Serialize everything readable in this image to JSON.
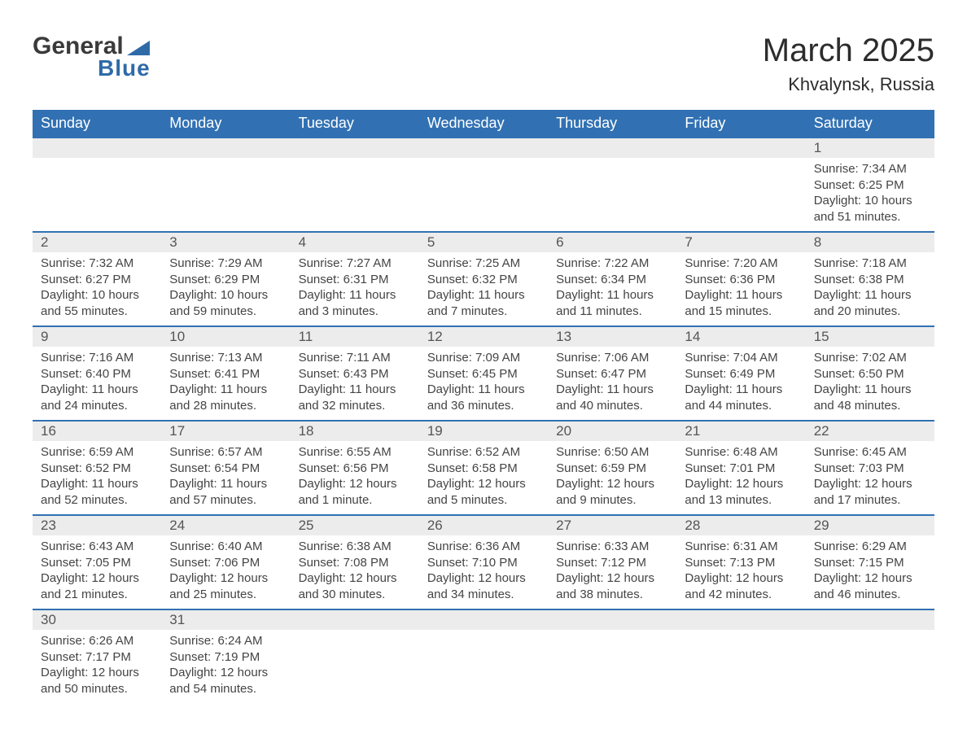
{
  "brand": {
    "name_main": "General",
    "name_sub": "Blue"
  },
  "title": "March 2025",
  "location": "Khvalynsk, Russia",
  "colors": {
    "header_bg": "#3171b3",
    "header_text": "#ffffff",
    "band_bg": "#ececec",
    "divider": "#3171b3",
    "text": "#444444",
    "title_text": "#2c2c2c",
    "brand_blue": "#2f6aa8"
  },
  "days_of_week": [
    "Sunday",
    "Monday",
    "Tuesday",
    "Wednesday",
    "Thursday",
    "Friday",
    "Saturday"
  ],
  "labels": {
    "sunrise": "Sunrise:",
    "sunset": "Sunset:",
    "daylight": "Daylight:"
  },
  "weeks": [
    [
      null,
      null,
      null,
      null,
      null,
      null,
      {
        "n": "1",
        "sunrise": "7:34 AM",
        "sunset": "6:25 PM",
        "daylight": "10 hours and 51 minutes."
      }
    ],
    [
      {
        "n": "2",
        "sunrise": "7:32 AM",
        "sunset": "6:27 PM",
        "daylight": "10 hours and 55 minutes."
      },
      {
        "n": "3",
        "sunrise": "7:29 AM",
        "sunset": "6:29 PM",
        "daylight": "10 hours and 59 minutes."
      },
      {
        "n": "4",
        "sunrise": "7:27 AM",
        "sunset": "6:31 PM",
        "daylight": "11 hours and 3 minutes."
      },
      {
        "n": "5",
        "sunrise": "7:25 AM",
        "sunset": "6:32 PM",
        "daylight": "11 hours and 7 minutes."
      },
      {
        "n": "6",
        "sunrise": "7:22 AM",
        "sunset": "6:34 PM",
        "daylight": "11 hours and 11 minutes."
      },
      {
        "n": "7",
        "sunrise": "7:20 AM",
        "sunset": "6:36 PM",
        "daylight": "11 hours and 15 minutes."
      },
      {
        "n": "8",
        "sunrise": "7:18 AM",
        "sunset": "6:38 PM",
        "daylight": "11 hours and 20 minutes."
      }
    ],
    [
      {
        "n": "9",
        "sunrise": "7:16 AM",
        "sunset": "6:40 PM",
        "daylight": "11 hours and 24 minutes."
      },
      {
        "n": "10",
        "sunrise": "7:13 AM",
        "sunset": "6:41 PM",
        "daylight": "11 hours and 28 minutes."
      },
      {
        "n": "11",
        "sunrise": "7:11 AM",
        "sunset": "6:43 PM",
        "daylight": "11 hours and 32 minutes."
      },
      {
        "n": "12",
        "sunrise": "7:09 AM",
        "sunset": "6:45 PM",
        "daylight": "11 hours and 36 minutes."
      },
      {
        "n": "13",
        "sunrise": "7:06 AM",
        "sunset": "6:47 PM",
        "daylight": "11 hours and 40 minutes."
      },
      {
        "n": "14",
        "sunrise": "7:04 AM",
        "sunset": "6:49 PM",
        "daylight": "11 hours and 44 minutes."
      },
      {
        "n": "15",
        "sunrise": "7:02 AM",
        "sunset": "6:50 PM",
        "daylight": "11 hours and 48 minutes."
      }
    ],
    [
      {
        "n": "16",
        "sunrise": "6:59 AM",
        "sunset": "6:52 PM",
        "daylight": "11 hours and 52 minutes."
      },
      {
        "n": "17",
        "sunrise": "6:57 AM",
        "sunset": "6:54 PM",
        "daylight": "11 hours and 57 minutes."
      },
      {
        "n": "18",
        "sunrise": "6:55 AM",
        "sunset": "6:56 PM",
        "daylight": "12 hours and 1 minute."
      },
      {
        "n": "19",
        "sunrise": "6:52 AM",
        "sunset": "6:58 PM",
        "daylight": "12 hours and 5 minutes."
      },
      {
        "n": "20",
        "sunrise": "6:50 AM",
        "sunset": "6:59 PM",
        "daylight": "12 hours and 9 minutes."
      },
      {
        "n": "21",
        "sunrise": "6:48 AM",
        "sunset": "7:01 PM",
        "daylight": "12 hours and 13 minutes."
      },
      {
        "n": "22",
        "sunrise": "6:45 AM",
        "sunset": "7:03 PM",
        "daylight": "12 hours and 17 minutes."
      }
    ],
    [
      {
        "n": "23",
        "sunrise": "6:43 AM",
        "sunset": "7:05 PM",
        "daylight": "12 hours and 21 minutes."
      },
      {
        "n": "24",
        "sunrise": "6:40 AM",
        "sunset": "7:06 PM",
        "daylight": "12 hours and 25 minutes."
      },
      {
        "n": "25",
        "sunrise": "6:38 AM",
        "sunset": "7:08 PM",
        "daylight": "12 hours and 30 minutes."
      },
      {
        "n": "26",
        "sunrise": "6:36 AM",
        "sunset": "7:10 PM",
        "daylight": "12 hours and 34 minutes."
      },
      {
        "n": "27",
        "sunrise": "6:33 AM",
        "sunset": "7:12 PM",
        "daylight": "12 hours and 38 minutes."
      },
      {
        "n": "28",
        "sunrise": "6:31 AM",
        "sunset": "7:13 PM",
        "daylight": "12 hours and 42 minutes."
      },
      {
        "n": "29",
        "sunrise": "6:29 AM",
        "sunset": "7:15 PM",
        "daylight": "12 hours and 46 minutes."
      }
    ],
    [
      {
        "n": "30",
        "sunrise": "6:26 AM",
        "sunset": "7:17 PM",
        "daylight": "12 hours and 50 minutes."
      },
      {
        "n": "31",
        "sunrise": "6:24 AM",
        "sunset": "7:19 PM",
        "daylight": "12 hours and 54 minutes."
      },
      null,
      null,
      null,
      null,
      null
    ]
  ]
}
